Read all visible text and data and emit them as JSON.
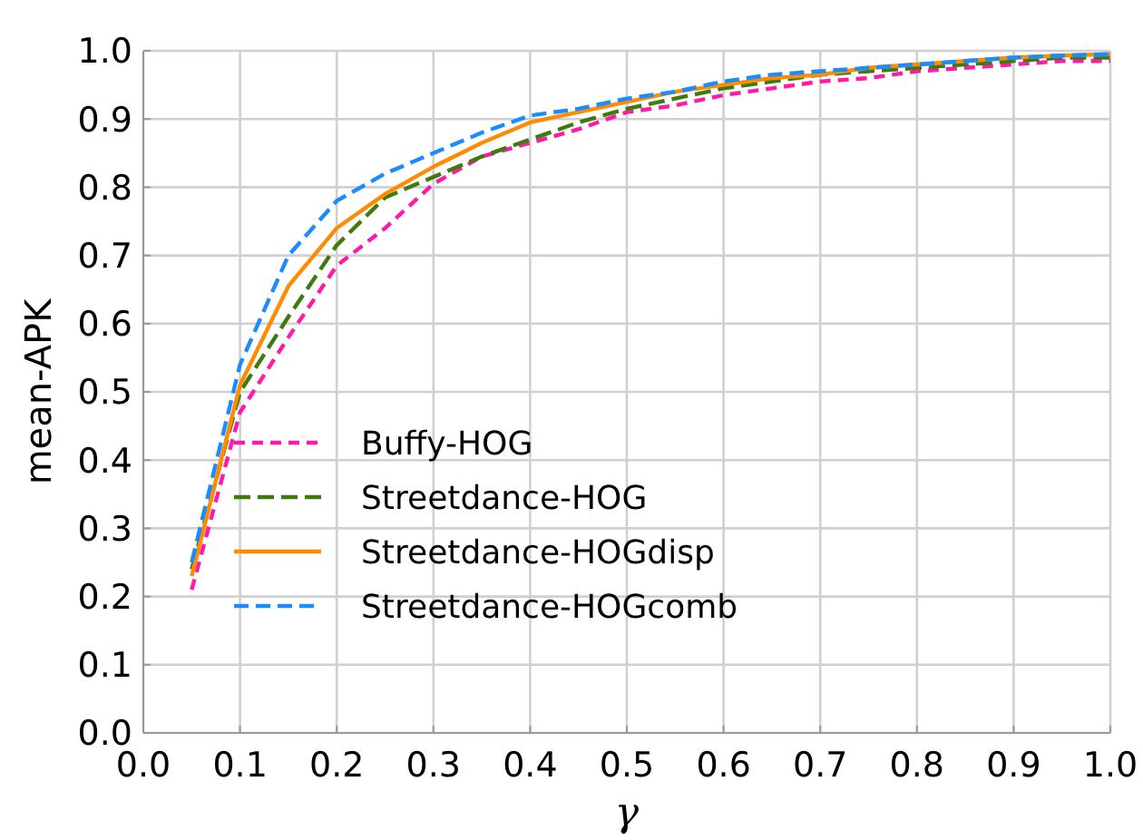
{
  "chart_data": {
    "type": "line",
    "xlabel": "γ",
    "ylabel": "mean-APK",
    "x": [
      0.05,
      0.1,
      0.15,
      0.2,
      0.25,
      0.3,
      0.35,
      0.4,
      0.45,
      0.5,
      0.55,
      0.6,
      0.65,
      0.7,
      0.75,
      0.8,
      0.85,
      0.9,
      0.95,
      1.0
    ],
    "series": [
      {
        "name": "Buffy-HOG",
        "color": "#ff1aa8",
        "line_style": "dashed",
        "values": [
          0.21,
          0.47,
          0.58,
          0.685,
          0.74,
          0.805,
          0.845,
          0.865,
          0.885,
          0.91,
          0.92,
          0.935,
          0.945,
          0.955,
          0.96,
          0.97,
          0.975,
          0.98,
          0.985,
          0.985
        ]
      },
      {
        "name": "Streetdance-HOG",
        "color": "#3f7a10",
        "line_style": "dashed",
        "values": [
          0.24,
          0.5,
          0.61,
          0.715,
          0.785,
          0.815,
          0.845,
          0.87,
          0.895,
          0.915,
          0.93,
          0.945,
          0.955,
          0.965,
          0.97,
          0.975,
          0.98,
          0.985,
          0.99,
          0.99
        ]
      },
      {
        "name": "Streetdance-HOGdisp",
        "color": "#ff8c00",
        "line_style": "solid",
        "values": [
          0.23,
          0.51,
          0.655,
          0.74,
          0.79,
          0.83,
          0.865,
          0.895,
          0.91,
          0.925,
          0.94,
          0.95,
          0.96,
          0.965,
          0.975,
          0.98,
          0.985,
          0.99,
          0.993,
          0.995
        ]
      },
      {
        "name": "Streetdance-HOGcomb",
        "color": "#1a8cff",
        "line_style": "dashed",
        "values": [
          0.25,
          0.54,
          0.7,
          0.78,
          0.82,
          0.85,
          0.88,
          0.905,
          0.915,
          0.93,
          0.94,
          0.955,
          0.965,
          0.97,
          0.975,
          0.98,
          0.985,
          0.99,
          0.993,
          0.995
        ]
      }
    ],
    "xlim": [
      0,
      1
    ],
    "ylim": [
      0,
      1
    ],
    "xticks": [
      {
        "value": 0,
        "label": "0.0"
      },
      0.1,
      0.2,
      0.3,
      0.4,
      0.5,
      0.6,
      0.7,
      0.8,
      0.9,
      {
        "value": 1,
        "label": "1.0"
      }
    ],
    "yticks": [
      {
        "value": 0,
        "label": "0.0"
      },
      0.1,
      0.2,
      0.3,
      0.4,
      0.5,
      0.6,
      0.7,
      0.8,
      0.9,
      {
        "value": 1,
        "label": "1.0"
      }
    ],
    "grid": true,
    "legend": "bottom left",
    "marker": "none"
  }
}
